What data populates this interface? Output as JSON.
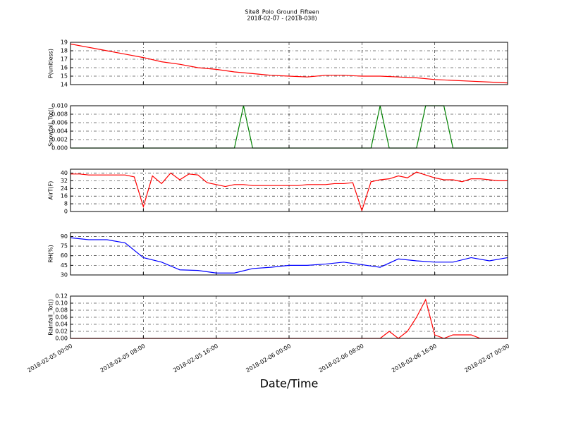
{
  "title": "Site8_Polo_Ground_Fifteen",
  "subtitle": "2018-02-07 - (2018-038)",
  "x_label": "Date/Time",
  "chart_data": [
    {
      "type": "line",
      "y_label": "P(unitless)",
      "xlim": [
        "2018-02-05 00:00",
        "2018-02-07 00:00"
      ],
      "ylim": [
        14,
        19
      ],
      "yticks": [
        14,
        15,
        16,
        17,
        18,
        19
      ],
      "grid": true,
      "x": [
        "2018-02-05 00:00",
        "2018-02-05 02:00",
        "2018-02-05 04:00",
        "2018-02-05 06:00",
        "2018-02-05 08:00",
        "2018-02-05 10:00",
        "2018-02-05 12:00",
        "2018-02-05 14:00",
        "2018-02-05 16:00",
        "2018-02-05 18:00",
        "2018-02-05 20:00",
        "2018-02-05 22:00",
        "2018-02-06 00:00",
        "2018-02-06 02:00",
        "2018-02-06 04:00",
        "2018-02-06 06:00",
        "2018-02-06 08:00",
        "2018-02-06 10:00",
        "2018-02-06 12:00",
        "2018-02-06 14:00",
        "2018-02-06 16:00",
        "2018-02-06 18:00",
        "2018-02-06 20:00",
        "2018-02-06 22:00",
        "2018-02-07 00:00"
      ],
      "series": [
        {
          "color": "#ff0000",
          "values": [
            18.8,
            18.4,
            18.0,
            17.6,
            17.2,
            16.7,
            16.4,
            16.0,
            15.8,
            15.5,
            15.3,
            15.1,
            15.0,
            14.9,
            15.1,
            15.1,
            15.0,
            15.0,
            14.9,
            14.8,
            14.6,
            14.5,
            14.4,
            14.3,
            14.2
          ]
        }
      ]
    },
    {
      "type": "line",
      "y_label": "Snowfall_Tot()",
      "xlim": [
        "2018-02-05 00:00",
        "2018-02-07 00:00"
      ],
      "ylim": [
        0,
        0.01
      ],
      "yticks": [
        {
          "value": 0,
          "label": "0.000"
        },
        {
          "value": 0.002,
          "label": "0.002"
        },
        {
          "value": 0.004,
          "label": "0.004"
        },
        {
          "value": 0.006,
          "label": "0.006"
        },
        {
          "value": 0.008,
          "label": "0.008"
        },
        {
          "value": 0.01,
          "label": "0.010"
        }
      ],
      "grid": true,
      "x": [
        "2018-02-05 00:00",
        "2018-02-05 01:00",
        "2018-02-05 02:00",
        "2018-02-05 03:00",
        "2018-02-05 04:00",
        "2018-02-05 05:00",
        "2018-02-05 06:00",
        "2018-02-05 07:00",
        "2018-02-05 08:00",
        "2018-02-05 09:00",
        "2018-02-05 10:00",
        "2018-02-05 11:00",
        "2018-02-05 12:00",
        "2018-02-05 13:00",
        "2018-02-05 14:00",
        "2018-02-05 15:00",
        "2018-02-05 16:00",
        "2018-02-05 17:00",
        "2018-02-05 18:00",
        "2018-02-05 19:00",
        "2018-02-05 20:00",
        "2018-02-05 21:00",
        "2018-02-05 22:00",
        "2018-02-05 23:00",
        "2018-02-06 00:00",
        "2018-02-06 01:00",
        "2018-02-06 02:00",
        "2018-02-06 03:00",
        "2018-02-06 04:00",
        "2018-02-06 05:00",
        "2018-02-06 06:00",
        "2018-02-06 07:00",
        "2018-02-06 08:00",
        "2018-02-06 09:00",
        "2018-02-06 10:00",
        "2018-02-06 11:00",
        "2018-02-06 12:00",
        "2018-02-06 13:00",
        "2018-02-06 14:00",
        "2018-02-06 15:00",
        "2018-02-06 16:00",
        "2018-02-06 17:00",
        "2018-02-06 18:00",
        "2018-02-06 19:00",
        "2018-02-06 20:00",
        "2018-02-06 21:00",
        "2018-02-06 22:00",
        "2018-02-06 23:00",
        "2018-02-07 00:00"
      ],
      "series": [
        {
          "color": "#008000",
          "values": [
            0,
            0,
            0,
            0,
            0,
            0,
            0,
            0,
            0,
            0,
            0,
            0,
            0,
            0,
            0,
            0,
            0,
            0,
            0,
            0.01,
            0,
            0,
            0,
            0,
            0,
            0,
            0,
            0,
            0,
            0,
            0,
            0,
            0,
            0,
            0.01,
            0,
            0,
            0,
            0,
            0.01,
            0.01,
            0.01,
            0,
            0,
            0,
            0,
            0,
            0,
            0
          ]
        }
      ]
    },
    {
      "type": "line",
      "y_label": "AirT(F)",
      "xlim": [
        "2018-02-05 00:00",
        "2018-02-07 00:00"
      ],
      "ylim": [
        0,
        44
      ],
      "yticks": [
        0,
        8,
        16,
        24,
        32,
        40
      ],
      "grid": true,
      "x": [
        "2018-02-05 00:00",
        "2018-02-05 01:00",
        "2018-02-05 02:00",
        "2018-02-05 03:00",
        "2018-02-05 04:00",
        "2018-02-05 05:00",
        "2018-02-05 06:00",
        "2018-02-05 07:00",
        "2018-02-05 08:00",
        "2018-02-05 09:00",
        "2018-02-05 10:00",
        "2018-02-05 11:00",
        "2018-02-05 12:00",
        "2018-02-05 13:00",
        "2018-02-05 14:00",
        "2018-02-05 15:00",
        "2018-02-05 16:00",
        "2018-02-05 17:00",
        "2018-02-05 18:00",
        "2018-02-05 19:00",
        "2018-02-05 20:00",
        "2018-02-05 21:00",
        "2018-02-05 22:00",
        "2018-02-05 23:00",
        "2018-02-06 00:00",
        "2018-02-06 01:00",
        "2018-02-06 02:00",
        "2018-02-06 03:00",
        "2018-02-06 04:00",
        "2018-02-06 05:00",
        "2018-02-06 06:00",
        "2018-02-06 07:00",
        "2018-02-06 08:00",
        "2018-02-06 09:00",
        "2018-02-06 10:00",
        "2018-02-06 11:00",
        "2018-02-06 12:00",
        "2018-02-06 13:00",
        "2018-02-06 14:00",
        "2018-02-06 15:00",
        "2018-02-06 16:00",
        "2018-02-06 17:00",
        "2018-02-06 18:00",
        "2018-02-06 19:00",
        "2018-02-06 20:00",
        "2018-02-06 21:00",
        "2018-02-06 22:00",
        "2018-02-06 23:00",
        "2018-02-07 00:00"
      ],
      "series": [
        {
          "color": "#ff0000",
          "values": [
            39,
            39,
            38,
            38,
            38,
            38,
            38,
            36,
            5,
            37,
            29,
            40,
            33,
            39,
            38,
            30,
            28,
            26,
            28,
            28,
            27,
            27,
            27,
            27,
            27,
            27,
            28,
            28,
            28,
            29,
            29,
            30,
            1,
            31,
            33,
            34,
            37,
            35,
            41,
            38,
            35,
            33,
            33,
            31,
            34,
            34,
            33,
            32,
            32
          ]
        }
      ]
    },
    {
      "type": "line",
      "y_label": "RH(%)",
      "xlim": [
        "2018-02-05 00:00",
        "2018-02-07 00:00"
      ],
      "ylim": [
        30,
        96
      ],
      "yticks": [
        30,
        45,
        60,
        75,
        90
      ],
      "grid": true,
      "x": [
        "2018-02-05 00:00",
        "2018-02-05 02:00",
        "2018-02-05 04:00",
        "2018-02-05 06:00",
        "2018-02-05 08:00",
        "2018-02-05 10:00",
        "2018-02-05 12:00",
        "2018-02-05 14:00",
        "2018-02-05 16:00",
        "2018-02-05 18:00",
        "2018-02-05 20:00",
        "2018-02-05 22:00",
        "2018-02-06 00:00",
        "2018-02-06 02:00",
        "2018-02-06 04:00",
        "2018-02-06 06:00",
        "2018-02-06 08:00",
        "2018-02-06 10:00",
        "2018-02-06 12:00",
        "2018-02-06 14:00",
        "2018-02-06 16:00",
        "2018-02-06 18:00",
        "2018-02-06 20:00",
        "2018-02-06 22:00",
        "2018-02-07 00:00"
      ],
      "series": [
        {
          "color": "#0000ff",
          "values": [
            88,
            85,
            85,
            80,
            57,
            50,
            38,
            37,
            33,
            33,
            40,
            42,
            45,
            45,
            47,
            50,
            46,
            42,
            55,
            52,
            50,
            50,
            57,
            52,
            57
          ]
        }
      ]
    },
    {
      "type": "line",
      "y_label": "Rainfall_Tot()",
      "xlim": [
        "2018-02-05 00:00",
        "2018-02-07 00:00"
      ],
      "ylim": [
        0,
        0.12
      ],
      "yticks": [
        {
          "value": 0,
          "label": "0.00"
        },
        {
          "value": 0.02,
          "label": "0.02"
        },
        {
          "value": 0.04,
          "label": "0.04"
        },
        {
          "value": 0.06,
          "label": "0.06"
        },
        {
          "value": 0.08,
          "label": "0.08"
        },
        {
          "value": 0.1,
          "label": "0.10"
        },
        {
          "value": 0.12,
          "label": "0.12"
        }
      ],
      "grid": true,
      "xticks": [
        "2018-02-05 00:00",
        "2018-02-05 08:00",
        "2018-02-05 16:00",
        "2018-02-06 00:00",
        "2018-02-06 08:00",
        "2018-02-06 16:00",
        "2018-02-07 00:00"
      ],
      "x": [
        "2018-02-05 00:00",
        "2018-02-05 01:00",
        "2018-02-05 02:00",
        "2018-02-05 03:00",
        "2018-02-05 04:00",
        "2018-02-05 05:00",
        "2018-02-05 06:00",
        "2018-02-05 07:00",
        "2018-02-05 08:00",
        "2018-02-05 09:00",
        "2018-02-05 10:00",
        "2018-02-05 11:00",
        "2018-02-05 12:00",
        "2018-02-05 13:00",
        "2018-02-05 14:00",
        "2018-02-05 15:00",
        "2018-02-05 16:00",
        "2018-02-05 17:00",
        "2018-02-05 18:00",
        "2018-02-05 19:00",
        "2018-02-05 20:00",
        "2018-02-05 21:00",
        "2018-02-05 22:00",
        "2018-02-05 23:00",
        "2018-02-06 00:00",
        "2018-02-06 01:00",
        "2018-02-06 02:00",
        "2018-02-06 03:00",
        "2018-02-06 04:00",
        "2018-02-06 05:00",
        "2018-02-06 06:00",
        "2018-02-06 07:00",
        "2018-02-06 08:00",
        "2018-02-06 09:00",
        "2018-02-06 10:00",
        "2018-02-06 11:00",
        "2018-02-06 12:00",
        "2018-02-06 13:00",
        "2018-02-06 14:00",
        "2018-02-06 15:00",
        "2018-02-06 16:00",
        "2018-02-06 17:00",
        "2018-02-06 18:00",
        "2018-02-06 19:00",
        "2018-02-06 20:00",
        "2018-02-06 21:00",
        "2018-02-06 22:00",
        "2018-02-06 23:00",
        "2018-02-07 00:00"
      ],
      "series": [
        {
          "color": "#ff0000",
          "values": [
            0,
            0,
            0,
            0,
            0,
            0,
            0,
            0,
            0,
            0,
            0,
            0,
            0,
            0,
            0,
            0,
            0,
            0,
            0,
            0,
            0,
            0,
            0,
            0,
            0,
            0,
            0,
            0,
            0,
            0,
            0,
            0,
            0,
            0,
            0,
            0.02,
            0,
            0.02,
            0.06,
            0.11,
            0.01,
            0,
            0.01,
            0.01,
            0.01,
            0,
            0,
            0,
            0
          ]
        }
      ]
    }
  ]
}
